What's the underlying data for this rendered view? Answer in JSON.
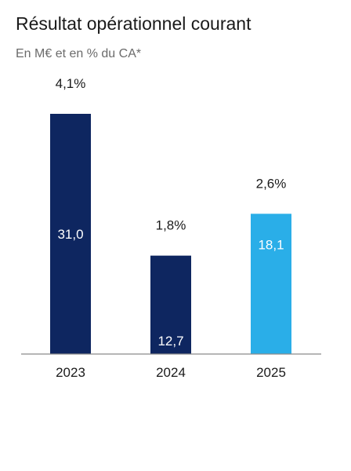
{
  "chart_data": {
    "type": "bar",
    "title": "Résultat opérationnel courant",
    "subtitle": "En M€ et en % du CA*",
    "categories": [
      "2023",
      "2024",
      "2025"
    ],
    "values": [
      31.0,
      12.7,
      18.1
    ],
    "value_labels": [
      "31,0",
      "12,7",
      "18,1"
    ],
    "percent_labels": [
      "4,1%",
      "1,8%",
      "2,6%"
    ],
    "bar_colors": [
      "#0e2660",
      "#0e2660",
      "#2aaee8"
    ],
    "xlabel": "",
    "ylabel": "",
    "ylim": [
      0,
      31.0
    ],
    "grid": false,
    "legend": "none"
  }
}
